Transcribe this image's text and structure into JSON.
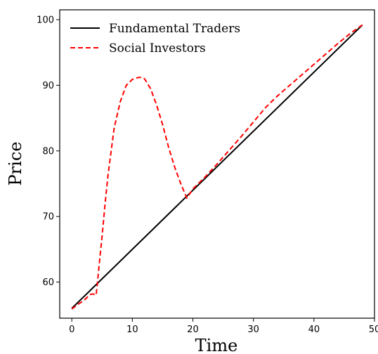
{
  "chart_data": {
    "type": "line",
    "xlabel": "Time",
    "ylabel": "Price",
    "xlim": [
      -2,
      50
    ],
    "ylim": [
      54.5,
      101.5
    ],
    "xticks": [
      0,
      10,
      20,
      30,
      40,
      50
    ],
    "yticks": [
      60,
      70,
      80,
      90,
      100
    ],
    "grid": false,
    "legend_position": "top-left",
    "series": [
      {
        "name": "Fundamental Traders",
        "color": "#000000",
        "style": "solid",
        "x": [
          0,
          48
        ],
        "y": [
          56.0,
          99.2
        ]
      },
      {
        "name": "Social Investors",
        "color": "#ff0000",
        "style": "dashed",
        "x": [
          0,
          1,
          2,
          3,
          3.5,
          4,
          4.2,
          4.5,
          5,
          5.5,
          6,
          7,
          8,
          9,
          10,
          11,
          11.5,
          12,
          13,
          14,
          15,
          16,
          17,
          18,
          19,
          20,
          22,
          24,
          26,
          28,
          30,
          32,
          34,
          36,
          38,
          40,
          42,
          44,
          46,
          48
        ],
        "y": [
          55.9,
          56.6,
          57.2,
          58.1,
          58.2,
          58.0,
          59.5,
          62.5,
          67.0,
          72.0,
          76.5,
          83.5,
          87.5,
          90.0,
          90.9,
          91.2,
          91.2,
          91.0,
          89.5,
          87.0,
          84.0,
          80.5,
          77.5,
          75.0,
          72.8,
          74.2,
          76.0,
          78.0,
          80.1,
          82.2,
          84.4,
          86.6,
          88.4,
          90.0,
          91.6,
          93.2,
          94.8,
          96.4,
          97.9,
          99.2
        ]
      }
    ]
  }
}
